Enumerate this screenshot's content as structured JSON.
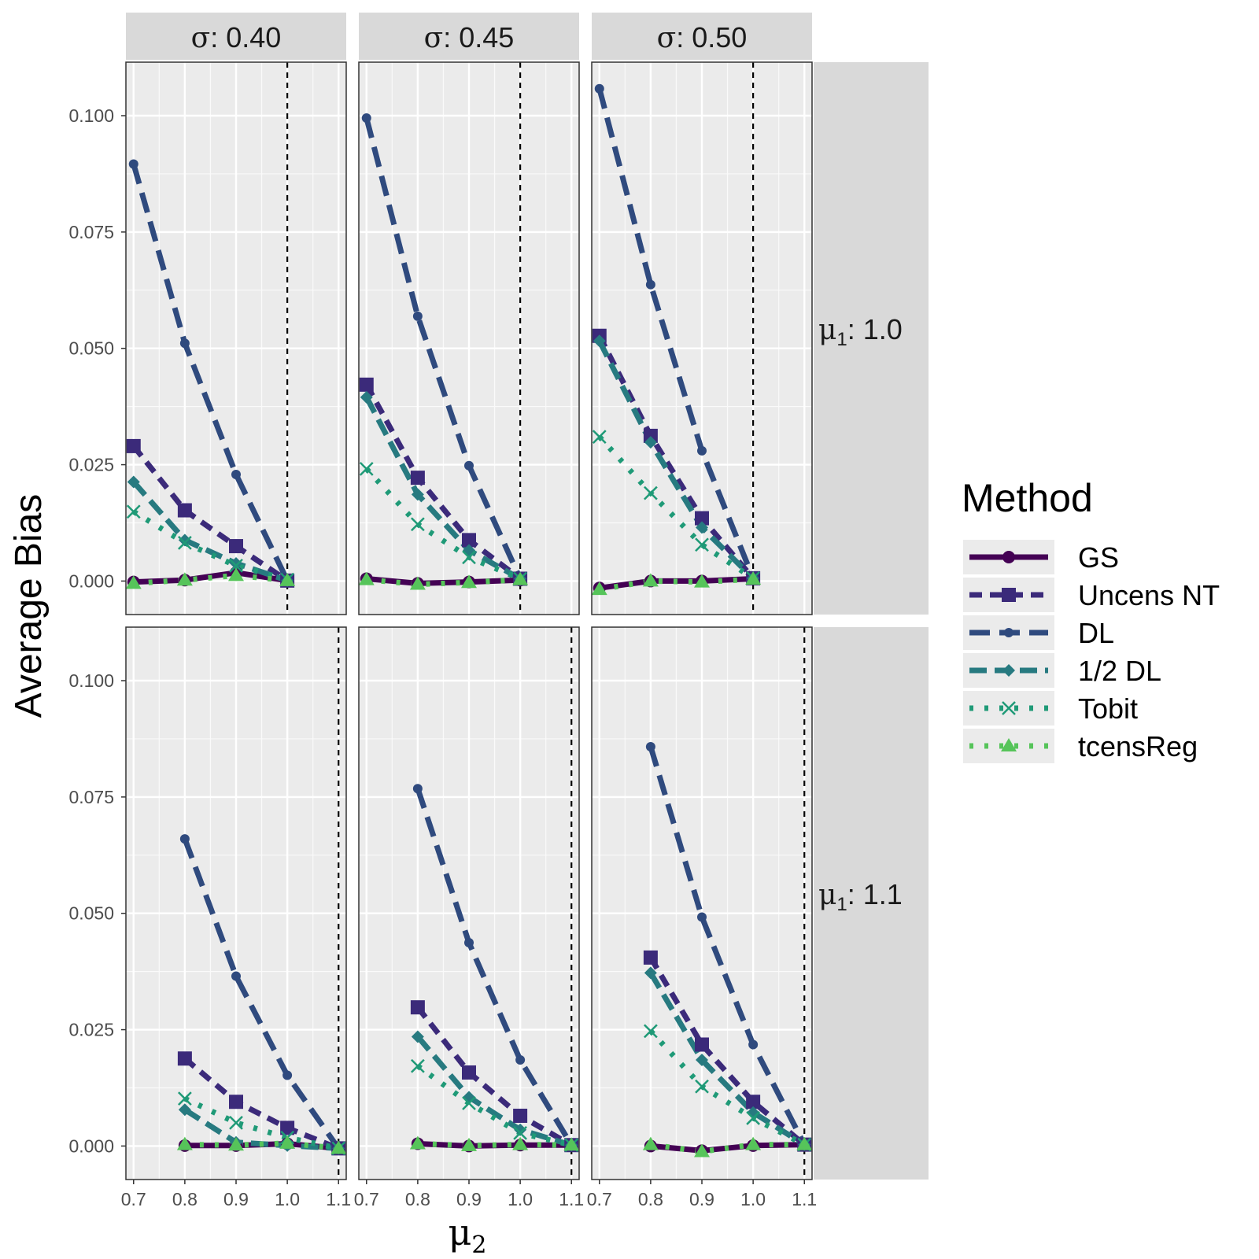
{
  "chart_data": {
    "type": "line",
    "ylabel": "Average Bias",
    "xlabel": {
      "symbol": "μ",
      "sub": "2"
    },
    "x_ticks": [
      "0.7",
      "0.8",
      "0.9",
      "1.0",
      "1.1"
    ],
    "y_ticks": [
      "0.000",
      "0.025",
      "0.050",
      "0.075",
      "0.100"
    ],
    "xlim": [
      0.685,
      1.115
    ],
    "ylim": [
      -0.0072,
      0.1115
    ],
    "col_facets": [
      {
        "symbol": "σ",
        "label": ": 0.40"
      },
      {
        "symbol": "σ",
        "label": ": 0.45"
      },
      {
        "symbol": "σ",
        "label": ": 0.50"
      }
    ],
    "row_facets": [
      {
        "symbol": "μ",
        "sub": "1",
        "label": ": 1.0",
        "vline": 1.0
      },
      {
        "symbol": "μ",
        "sub": "1",
        "label": ": 1.1",
        "vline": 1.1
      }
    ],
    "legend": {
      "title": "Method",
      "position": "right",
      "entries": [
        "GS",
        "Uncens NT",
        "DL",
        "1/2 DL",
        "Tobit",
        "tcensReg"
      ]
    },
    "series_styles": [
      {
        "name": "GS",
        "color": "#440154",
        "dash": "",
        "shape": "circle"
      },
      {
        "name": "Uncens NT",
        "color": "#3b2a7a",
        "dash": "16,10",
        "shape": "square"
      },
      {
        "name": "DL",
        "color": "#2f4a7e",
        "dash": "26,12",
        "shape": "dot"
      },
      {
        "name": "1/2 DL",
        "color": "#277a80",
        "dash": "22,10",
        "shape": "diamond"
      },
      {
        "name": "Tobit",
        "color": "#1f9a77",
        "dash": "5,14",
        "shape": "cross"
      },
      {
        "name": "tcensReg",
        "color": "#56c45a",
        "dash": "5,14",
        "shape": "triangle"
      }
    ],
    "panels": [
      {
        "row": 0,
        "col": 0,
        "series": [
          {
            "name": "GS",
            "x": [
              0.7,
              0.8,
              0.9,
              1.0
            ],
            "y": [
              -0.0002,
              0.0002,
              0.0018,
              0.0001
            ]
          },
          {
            "name": "Uncens NT",
            "x": [
              0.7,
              0.8,
              0.9,
              1.0
            ],
            "y": [
              0.029,
              0.0152,
              0.0075,
              0.0001
            ]
          },
          {
            "name": "DL",
            "x": [
              0.7,
              0.8,
              0.9,
              1.0
            ],
            "y": [
              0.0896,
              0.0511,
              0.0229,
              0.0001
            ]
          },
          {
            "name": "1/2 DL",
            "x": [
              0.7,
              0.8,
              0.9,
              1.0
            ],
            "y": [
              0.0213,
              0.0088,
              0.0038,
              0.0001
            ]
          },
          {
            "name": "Tobit",
            "x": [
              0.7,
              0.8,
              0.9,
              1.0
            ],
            "y": [
              0.0149,
              0.0082,
              0.0033,
              0.0003
            ]
          },
          {
            "name": "tcensReg",
            "x": [
              0.7,
              0.8,
              0.9,
              1.0
            ],
            "y": [
              -0.0005,
              0.0002,
              0.0012,
              0.0001
            ]
          }
        ]
      },
      {
        "row": 0,
        "col": 1,
        "series": [
          {
            "name": "GS",
            "x": [
              0.7,
              0.8,
              0.9,
              1.0
            ],
            "y": [
              0.0005,
              -0.0005,
              -0.0002,
              0.0002
            ]
          },
          {
            "name": "Uncens NT",
            "x": [
              0.7,
              0.8,
              0.9,
              1.0
            ],
            "y": [
              0.0422,
              0.0222,
              0.0088,
              0.0005
            ]
          },
          {
            "name": "DL",
            "x": [
              0.7,
              0.8,
              0.9,
              1.0
            ],
            "y": [
              0.0995,
              0.0569,
              0.0248,
              0.0005
            ]
          },
          {
            "name": "1/2 DL",
            "x": [
              0.7,
              0.8,
              0.9,
              1.0
            ],
            "y": [
              0.0395,
              0.0186,
              0.0066,
              0.0005
            ]
          },
          {
            "name": "Tobit",
            "x": [
              0.7,
              0.8,
              0.9,
              1.0
            ],
            "y": [
              0.0241,
              0.0122,
              0.0051,
              0.0005
            ]
          },
          {
            "name": "tcensReg",
            "x": [
              0.7,
              0.8,
              0.9,
              1.0
            ],
            "y": [
              0.0003,
              -0.0007,
              -0.0003,
              0.0003
            ]
          }
        ]
      },
      {
        "row": 0,
        "col": 2,
        "series": [
          {
            "name": "GS",
            "x": [
              0.7,
              0.8,
              0.9,
              1.0
            ],
            "y": [
              -0.0015,
              0.0,
              0.0,
              0.0005
            ]
          },
          {
            "name": "Uncens NT",
            "x": [
              0.7,
              0.8,
              0.9,
              1.0
            ],
            "y": [
              0.0527,
              0.0312,
              0.0135,
              0.0006
            ]
          },
          {
            "name": "DL",
            "x": [
              0.7,
              0.8,
              0.9,
              1.0
            ],
            "y": [
              0.1058,
              0.0637,
              0.028,
              0.0006
            ]
          },
          {
            "name": "1/2 DL",
            "x": [
              0.7,
              0.8,
              0.9,
              1.0
            ],
            "y": [
              0.0516,
              0.0298,
              0.0115,
              0.0006
            ]
          },
          {
            "name": "Tobit",
            "x": [
              0.7,
              0.8,
              0.9,
              1.0
            ],
            "y": [
              0.031,
              0.0189,
              0.0078,
              0.0006
            ]
          },
          {
            "name": "tcensReg",
            "x": [
              0.7,
              0.8,
              0.9,
              1.0
            ],
            "y": [
              -0.0018,
              0.0,
              -0.0002,
              0.0004
            ]
          }
        ]
      },
      {
        "row": 1,
        "col": 0,
        "series": [
          {
            "name": "GS",
            "x": [
              0.8,
              0.9,
              1.0,
              1.1
            ],
            "y": [
              0.0001,
              0.0001,
              0.0005,
              -0.0005
            ]
          },
          {
            "name": "Uncens NT",
            "x": [
              0.8,
              0.9,
              1.0,
              1.1
            ],
            "y": [
              0.0188,
              0.0095,
              0.0039,
              -0.0005
            ]
          },
          {
            "name": "DL",
            "x": [
              0.8,
              0.9,
              1.0,
              1.1
            ],
            "y": [
              0.066,
              0.0365,
              0.0152,
              -0.0005
            ]
          },
          {
            "name": "1/2 DL",
            "x": [
              0.8,
              0.9,
              1.0,
              1.1
            ],
            "y": [
              0.0078,
              0.0008,
              0.0001,
              -0.0005
            ]
          },
          {
            "name": "Tobit",
            "x": [
              0.8,
              0.9,
              1.0,
              1.1
            ],
            "y": [
              0.0102,
              0.005,
              0.0018,
              -0.0005
            ]
          },
          {
            "name": "tcensReg",
            "x": [
              0.8,
              0.9,
              1.0,
              1.1
            ],
            "y": [
              0.0003,
              0.0002,
              0.0006,
              -0.0005
            ]
          }
        ]
      },
      {
        "row": 1,
        "col": 1,
        "series": [
          {
            "name": "GS",
            "x": [
              0.8,
              0.9,
              1.0,
              1.1
            ],
            "y": [
              0.0005,
              0.0,
              0.0002,
              0.0002
            ]
          },
          {
            "name": "Uncens NT",
            "x": [
              0.8,
              0.9,
              1.0,
              1.1
            ],
            "y": [
              0.0298,
              0.0158,
              0.0065,
              0.0002
            ]
          },
          {
            "name": "DL",
            "x": [
              0.8,
              0.9,
              1.0,
              1.1
            ],
            "y": [
              0.0768,
              0.0437,
              0.0185,
              0.0002
            ]
          },
          {
            "name": "1/2 DL",
            "x": [
              0.8,
              0.9,
              1.0,
              1.1
            ],
            "y": [
              0.0235,
              0.0105,
              0.0035,
              0.0002
            ]
          },
          {
            "name": "Tobit",
            "x": [
              0.8,
              0.9,
              1.0,
              1.1
            ],
            "y": [
              0.0172,
              0.0092,
              0.0028,
              0.0002
            ]
          },
          {
            "name": "tcensReg",
            "x": [
              0.8,
              0.9,
              1.0,
              1.1
            ],
            "y": [
              0.0005,
              0.0001,
              0.0003,
              0.0002
            ]
          }
        ]
      },
      {
        "row": 1,
        "col": 2,
        "series": [
          {
            "name": "GS",
            "x": [
              0.8,
              0.9,
              1.0,
              1.1
            ],
            "y": [
              0.0,
              -0.001,
              0.0001,
              0.0003
            ]
          },
          {
            "name": "Uncens NT",
            "x": [
              0.8,
              0.9,
              1.0,
              1.1
            ],
            "y": [
              0.0405,
              0.0218,
              0.0095,
              0.0003
            ]
          },
          {
            "name": "DL",
            "x": [
              0.8,
              0.9,
              1.0,
              1.1
            ],
            "y": [
              0.0858,
              0.0492,
              0.0218,
              0.0003
            ]
          },
          {
            "name": "1/2 DL",
            "x": [
              0.8,
              0.9,
              1.0,
              1.1
            ],
            "y": [
              0.0372,
              0.0185,
              0.0072,
              0.0003
            ]
          },
          {
            "name": "Tobit",
            "x": [
              0.8,
              0.9,
              1.0,
              1.1
            ],
            "y": [
              0.0247,
              0.0128,
              0.006,
              0.0003
            ]
          },
          {
            "name": "tcensReg",
            "x": [
              0.8,
              0.9,
              1.0,
              1.1
            ],
            "y": [
              0.0003,
              -0.0012,
              0.0003,
              0.0003
            ]
          }
        ]
      }
    ]
  }
}
